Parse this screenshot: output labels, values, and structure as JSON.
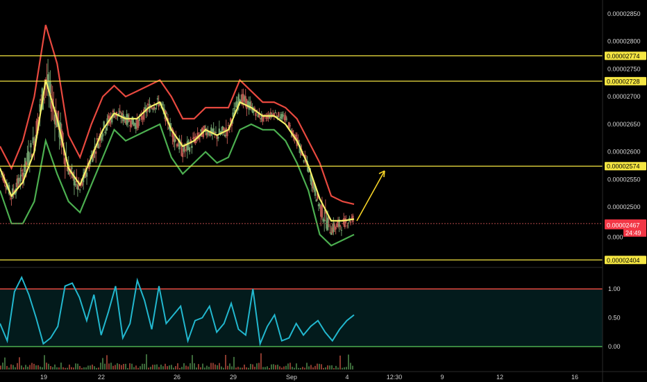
{
  "chart_data": {
    "type": "line",
    "price_axis": {
      "ticks": [
        "0.00002850",
        "0.00002800",
        "0.00002750",
        "0.00002700",
        "0.00002650",
        "0.00002600",
        "0.00002550",
        "0.00002500",
        "0.000"
      ],
      "tick_values": [
        2.85e-05,
        2.8e-05,
        2.75e-05,
        2.7e-05,
        2.65e-05,
        2.6e-05,
        2.55e-05,
        2.5e-05,
        2.445e-05
      ],
      "range": [
        2.4e-05,
        2.9e-05
      ]
    },
    "levels": [
      {
        "label": "0.00002774",
        "value": 2.774e-05
      },
      {
        "label": "0.00002728",
        "value": 2.728e-05
      },
      {
        "label": "0.00002574",
        "value": 2.574e-05
      },
      {
        "label": "0.00002404",
        "value": 2.404e-05
      }
    ],
    "last_price": {
      "label": "0.00002470",
      "value": 2.47e-05
    },
    "countdown": {
      "label": "24:49"
    },
    "current_tag": {
      "label": "0.00002467",
      "value": 2.467e-05
    },
    "x_axis": {
      "ticks": [
        "19",
        "22",
        "26",
        "29",
        "Sep",
        "4",
        "12:30",
        "9",
        "12",
        "16"
      ],
      "tick_positions": [
        4,
        9,
        15,
        20,
        25,
        31,
        36,
        41,
        47,
        52
      ]
    },
    "price_series": {
      "x": [
        0,
        1,
        2,
        3,
        4,
        5,
        6,
        7,
        8,
        9,
        10,
        11,
        12,
        13,
        14,
        15,
        16,
        17,
        18,
        19,
        20,
        21,
        22,
        23,
        24,
        25,
        26,
        27,
        28,
        29,
        30,
        31
      ],
      "close": [
        2.57e-05,
        2.52e-05,
        2.56e-05,
        2.62e-05,
        2.73e-05,
        2.66e-05,
        2.57e-05,
        2.53e-05,
        2.59e-05,
        2.64e-05,
        2.67e-05,
        2.66e-05,
        2.65e-05,
        2.68e-05,
        2.69e-05,
        2.64e-05,
        2.6e-05,
        2.62e-05,
        2.64e-05,
        2.63e-05,
        2.64e-05,
        2.7e-05,
        2.68e-05,
        2.66e-05,
        2.67e-05,
        2.66e-05,
        2.62e-05,
        2.57e-05,
        2.5e-05,
        2.46e-05,
        2.47e-05,
        2.48e-05
      ],
      "upper_band": [
        2.61e-05,
        2.57e-05,
        2.62e-05,
        2.7e-05,
        2.83e-05,
        2.76e-05,
        2.63e-05,
        2.59e-05,
        2.65e-05,
        2.7e-05,
        2.72e-05,
        2.7e-05,
        2.71e-05,
        2.72e-05,
        2.73e-05,
        2.7e-05,
        2.66e-05,
        2.66e-05,
        2.68e-05,
        2.68e-05,
        2.68e-05,
        2.73e-05,
        2.71e-05,
        2.69e-05,
        2.69e-05,
        2.68e-05,
        2.66e-05,
        2.62e-05,
        2.58e-05,
        2.52e-05,
        2.51e-05,
        2.505e-05
      ],
      "lower_band": [
        2.53e-05,
        2.47e-05,
        2.47e-05,
        2.51e-05,
        2.62e-05,
        2.56e-05,
        2.51e-05,
        2.49e-05,
        2.54e-05,
        2.59e-05,
        2.64e-05,
        2.62e-05,
        2.63e-05,
        2.64e-05,
        2.65e-05,
        2.59e-05,
        2.56e-05,
        2.58e-05,
        2.6e-05,
        2.58e-05,
        2.59e-05,
        2.64e-05,
        2.65e-05,
        2.64e-05,
        2.64e-05,
        2.62e-05,
        2.58e-05,
        2.53e-05,
        2.45e-05,
        2.43e-05,
        2.44e-05,
        2.45e-05
      ],
      "basis": [
        2.57e-05,
        2.52e-05,
        2.545e-05,
        2.6e-05,
        2.73e-05,
        2.66e-05,
        2.57e-05,
        2.54e-05,
        2.59e-05,
        2.64e-05,
        2.67e-05,
        2.66e-05,
        2.66e-05,
        2.68e-05,
        2.69e-05,
        2.64e-05,
        2.61e-05,
        2.62e-05,
        2.64e-05,
        2.63e-05,
        2.64e-05,
        2.69e-05,
        2.68e-05,
        2.665e-05,
        2.665e-05,
        2.65e-05,
        2.62e-05,
        2.575e-05,
        2.515e-05,
        2.475e-05,
        2.475e-05,
        2.478e-05
      ]
    },
    "oscillator": {
      "ticks": [
        "1.00",
        "0.50",
        "0.00"
      ],
      "tick_values": [
        1.0,
        0.5,
        0.0
      ],
      "range": [
        -0.35,
        1.4
      ],
      "upper_line": 1.0,
      "lower_line": 0.0,
      "values": [
        0.4,
        0.1,
        0.95,
        1.2,
        0.9,
        0.5,
        0.05,
        0.15,
        0.35,
        1.05,
        1.1,
        0.85,
        0.45,
        0.9,
        0.2,
        0.6,
        1.05,
        0.15,
        0.4,
        1.15,
        0.8,
        0.3,
        1.05,
        0.4,
        0.55,
        0.7,
        0.1,
        0.45,
        0.5,
        0.7,
        0.25,
        0.4,
        0.75,
        0.3,
        0.2,
        1.0,
        0.05,
        0.35,
        0.55,
        0.1,
        0.15,
        0.4,
        0.2,
        0.35,
        0.45,
        0.25,
        0.1,
        0.3,
        0.45,
        0.55
      ]
    },
    "colors": {
      "background": "#000000",
      "level_line": "#f5e642",
      "upper_band": "#e8493f",
      "lower_band": "#4caf50",
      "basis": "#f7f26a",
      "candles_up": "#6f9c6a",
      "candles_down": "#b8574f",
      "oscillator": "#22b8cf",
      "osc_upper": "#e8493f",
      "osc_lower": "#4caf50",
      "arrow": "#f5d327",
      "tag_red": "#f23645",
      "tag_yellow": "#f5e642"
    }
  }
}
